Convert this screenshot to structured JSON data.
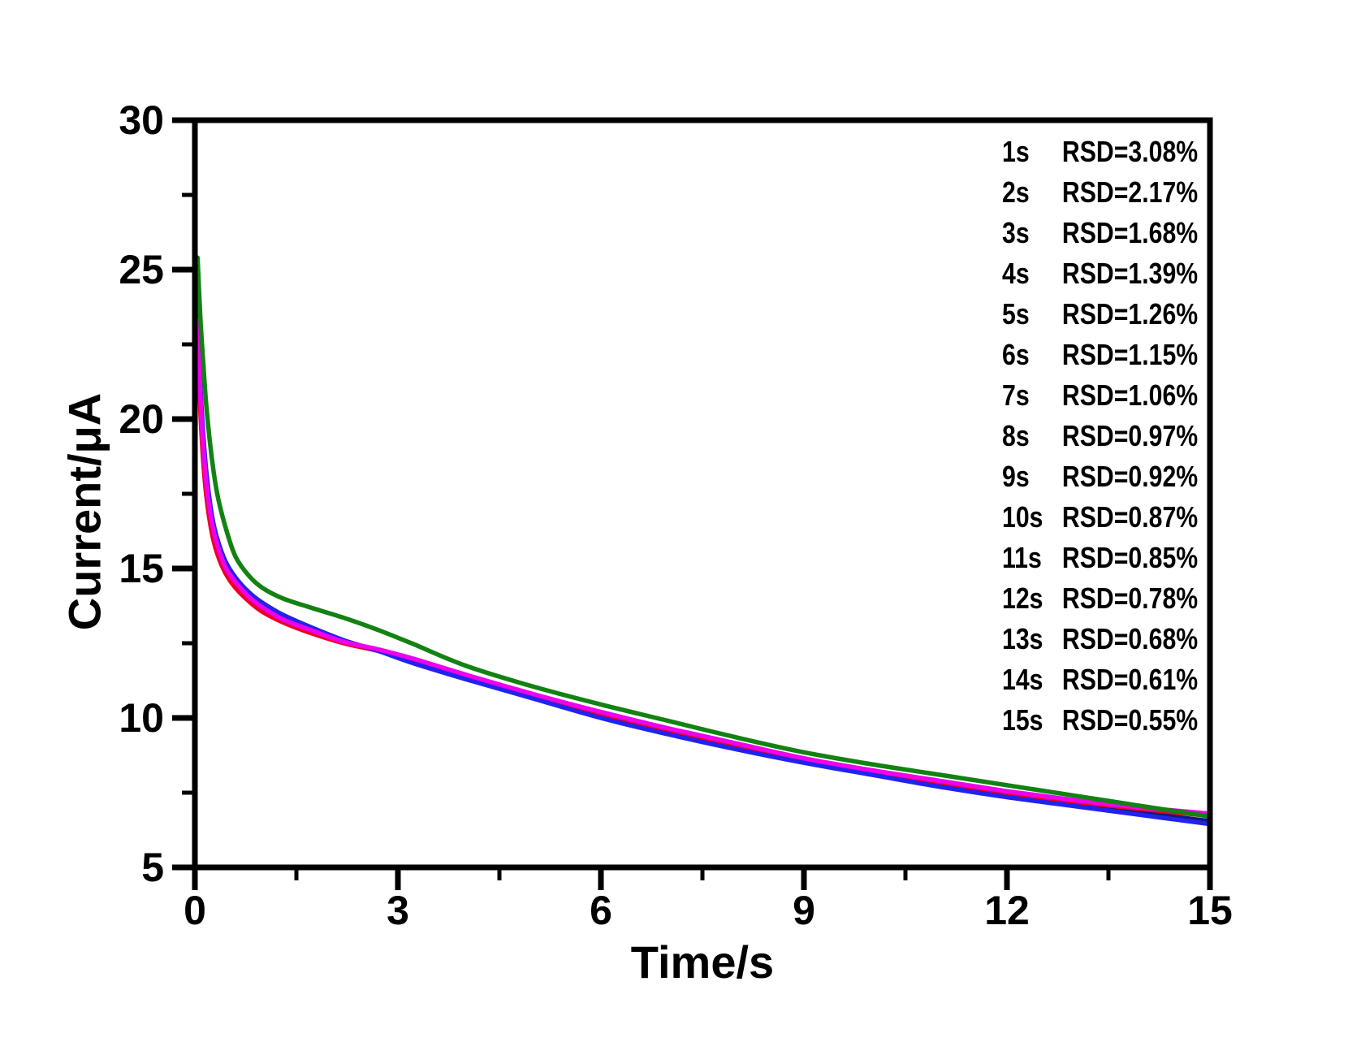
{
  "figure": {
    "background": "#ffffff",
    "axis_color": "#000000"
  },
  "chart_data": {
    "type": "line",
    "title": "",
    "xlabel": "Time/s",
    "ylabel": "Current/μA",
    "xlim": [
      0,
      15
    ],
    "ylim": [
      5,
      30
    ],
    "x_major_ticks": [
      0,
      3,
      6,
      9,
      12,
      15
    ],
    "x_minor_ticks": [
      1.5,
      4.5,
      7.5,
      10.5,
      13.5
    ],
    "y_major_ticks": [
      5,
      10,
      15,
      20,
      25,
      30
    ],
    "y_minor_ticks": [
      7.5,
      12.5,
      17.5,
      22.5,
      27.5
    ],
    "grid": false,
    "legend_position": "top-right",
    "t": [
      0.04,
      0.08,
      0.12,
      0.17,
      0.25,
      0.33,
      0.45,
      0.6,
      0.8,
      1.0,
      1.3,
      1.7,
      2.2,
      2.7,
      3.2,
      4.0,
      5.0,
      6.0,
      7.0,
      8.0,
      9.0,
      10.0,
      11.0,
      12.0,
      13.0,
      14.0,
      15.0
    ],
    "series": [
      {
        "name": "navy",
        "color": "#151580",
        "values": [
          23.45,
          21.0,
          19.4,
          18.0,
          16.65,
          15.9,
          15.15,
          14.6,
          14.12,
          13.77,
          13.37,
          13.0,
          12.57,
          12.27,
          11.92,
          11.37,
          10.72,
          10.08,
          9.53,
          9.03,
          8.57,
          8.17,
          7.78,
          7.43,
          7.12,
          6.83,
          6.55
        ]
      },
      {
        "name": "red",
        "color": "#ee0022",
        "values": [
          23.0,
          20.3,
          18.7,
          17.4,
          16.2,
          15.5,
          14.85,
          14.35,
          13.9,
          13.55,
          13.2,
          12.85,
          12.5,
          12.25,
          11.95,
          11.4,
          10.75,
          10.15,
          9.6,
          9.1,
          8.6,
          8.2,
          7.85,
          7.5,
          7.2,
          6.95,
          6.72
        ]
      },
      {
        "name": "blue",
        "color": "#2222ee",
        "values": [
          23.6,
          21.2,
          19.6,
          18.2,
          16.8,
          16.0,
          15.25,
          14.7,
          14.2,
          13.85,
          13.45,
          13.05,
          12.6,
          12.25,
          11.85,
          11.3,
          10.65,
          10.0,
          9.45,
          8.95,
          8.5,
          8.1,
          7.7,
          7.35,
          7.05,
          6.75,
          6.45
        ]
      },
      {
        "name": "magenta",
        "color": "#ee00ee",
        "values": [
          23.3,
          20.8,
          19.2,
          17.85,
          16.55,
          15.8,
          15.05,
          14.55,
          14.05,
          13.7,
          13.3,
          12.95,
          12.55,
          12.3,
          12.0,
          11.45,
          10.8,
          10.2,
          9.65,
          9.15,
          8.65,
          8.25,
          7.9,
          7.55,
          7.25,
          7.0,
          6.8
        ]
      },
      {
        "name": "green",
        "color": "#128212",
        "values": [
          25.4,
          23.4,
          22.0,
          20.4,
          18.7,
          17.5,
          16.4,
          15.4,
          14.75,
          14.35,
          14.0,
          13.7,
          13.35,
          12.95,
          12.5,
          11.75,
          11.05,
          10.45,
          9.9,
          9.35,
          8.85,
          8.45,
          8.1,
          7.75,
          7.4,
          7.05,
          6.7
        ]
      }
    ],
    "legend_rows": [
      {
        "time": "1s",
        "rsd": "RSD=3.08%"
      },
      {
        "time": "2s",
        "rsd": "RSD=2.17%"
      },
      {
        "time": "3s",
        "rsd": "RSD=1.68%"
      },
      {
        "time": "4s",
        "rsd": "RSD=1.39%"
      },
      {
        "time": "5s",
        "rsd": "RSD=1.26%"
      },
      {
        "time": "6s",
        "rsd": "RSD=1.15%"
      },
      {
        "time": "7s",
        "rsd": "RSD=1.06%"
      },
      {
        "time": "8s",
        "rsd": "RSD=0.97%"
      },
      {
        "time": "9s",
        "rsd": "RSD=0.92%"
      },
      {
        "time": "10s",
        "rsd": "RSD=0.87%"
      },
      {
        "time": "11s",
        "rsd": "RSD=0.85%"
      },
      {
        "time": "12s",
        "rsd": "RSD=0.78%"
      },
      {
        "time": "13s",
        "rsd": "RSD=0.68%"
      },
      {
        "time": "14s",
        "rsd": "RSD=0.61%"
      },
      {
        "time": "15s",
        "rsd": "RSD=0.55%"
      }
    ]
  }
}
